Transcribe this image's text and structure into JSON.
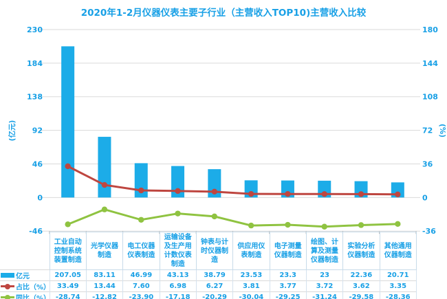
{
  "chart_data": {
    "type": "bar",
    "subtype": "combo-bar-line",
    "title": "2020年1-2月仪器仪表主要子行业（主营收入TOP10)主营收入比较",
    "categories": [
      "工业自动控制系统装置制造",
      "光学仪器制造",
      "电工仪器仪表制造",
      "运输设备及生产用计数仪表制造",
      "钟表与计时仪器制造",
      "供应用仪表制造",
      "电子测量仪器制造",
      "绘图、计算及测量仪器制造",
      "实验分析仪器制造",
      "其他通用仪器制造"
    ],
    "series": [
      {
        "name": "亿元",
        "type": "bar",
        "axis": "left",
        "color": "#1CACE8",
        "values": [
          207.05,
          83.11,
          46.99,
          43.13,
          38.79,
          23.53,
          23.3,
          23,
          22.36,
          20.71
        ]
      },
      {
        "name": "占比（%）",
        "type": "line",
        "axis": "right",
        "color": "#BE4640",
        "values": [
          33.49,
          13.44,
          7.6,
          6.98,
          6.27,
          3.81,
          3.77,
          3.72,
          3.62,
          3.35
        ]
      },
      {
        "name": "同比（%）",
        "type": "line",
        "axis": "right",
        "color": "#8FC341",
        "values": [
          -28.74,
          -12.82,
          -23.9,
          -17.18,
          -20.29,
          -30.04,
          -29.25,
          -31.24,
          -29.58,
          -28.36
        ]
      }
    ],
    "left_axis": {
      "label": "(亿元)",
      "ticks": [
        230,
        184,
        138,
        92,
        46,
        0,
        -46
      ],
      "min": -46,
      "max": 230
    },
    "right_axis": {
      "label": "(%)",
      "ticks": [
        180,
        144,
        108,
        72,
        36,
        0,
        -36
      ],
      "min": -36,
      "max": 180
    },
    "grid": true,
    "legend_position": "table-rows-left"
  },
  "table": {
    "row_labels": [
      "亿元",
      "占比（%）",
      "同比（%）"
    ],
    "rows": [
      [
        "207.05",
        "83.11",
        "46.99",
        "43.13",
        "38.79",
        "23.53",
        "23.3",
        "23",
        "22.36",
        "20.71"
      ],
      [
        "33.49",
        "13.44",
        "7.60",
        "6.98",
        "6.27",
        "3.81",
        "3.77",
        "3.72",
        "3.62",
        "3.35"
      ],
      [
        "-28.74",
        "-12.82",
        "-23.90",
        "-17.18",
        "-20.29",
        "-30.04",
        "-29.25",
        "-31.24",
        "-29.58",
        "-28.36"
      ]
    ]
  },
  "colors": {
    "text": "#18A0E6",
    "bar": "#1CACE8",
    "line_red": "#BE4640",
    "line_green": "#8FC341",
    "grid": "#DADADA",
    "axis_tick": "#ABABAB",
    "header_border": "#C7DBE9",
    "row_border": "#D9D9D9"
  }
}
